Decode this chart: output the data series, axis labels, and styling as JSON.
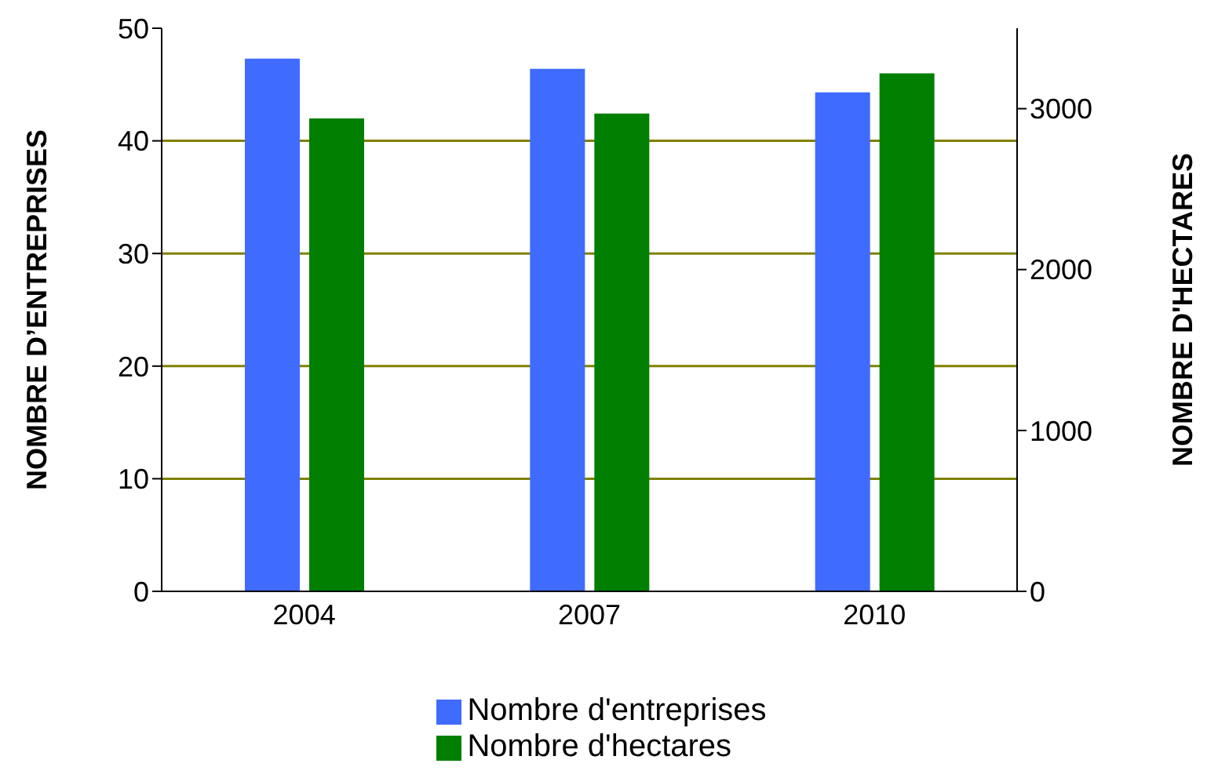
{
  "chart_data": {
    "type": "bar",
    "categories": [
      "2004",
      "2007",
      "2010"
    ],
    "series": [
      {
        "name": "Nombre d'entreprises",
        "color": "#3f6bff",
        "values": [
          47.3,
          46.4,
          44.3
        ]
      },
      {
        "name": "Nombre d'hectares",
        "color": "#007f00",
        "values": [
          2940,
          2970,
          3220
        ],
        "axis": "y2"
      }
    ],
    "ylabel": "NOMBRE D’ENTREPRISES",
    "y2label": "NOMBRE D'HECTARES",
    "ylim": [
      0,
      50
    ],
    "yticks": [
      0,
      10,
      20,
      30,
      40,
      50
    ],
    "y2lim": [
      0,
      3500
    ],
    "y2ticks": [
      0,
      1000,
      2000,
      3000
    ],
    "grid": "y",
    "legend": "bottom"
  }
}
